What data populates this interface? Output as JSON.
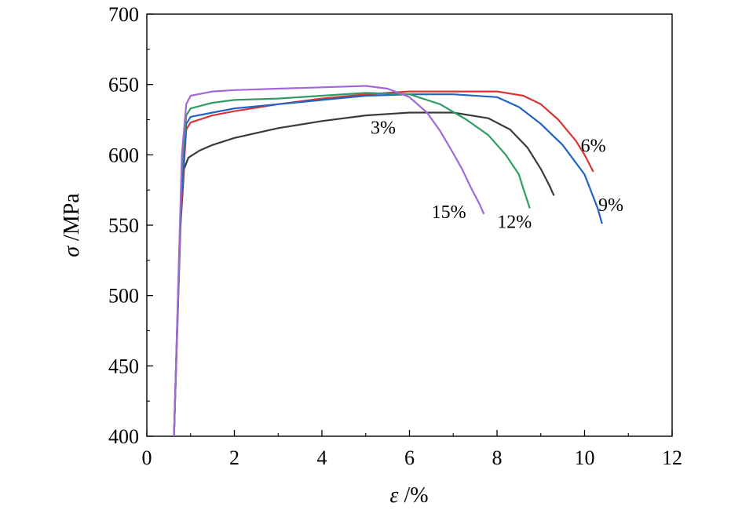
{
  "chart_data": {
    "type": "line",
    "title": "",
    "xlabel_symbol": "ε",
    "xlabel_unit": " /%",
    "ylabel_symbol": "σ",
    "ylabel_unit": " /MPa",
    "xlim": [
      0,
      12
    ],
    "ylim": [
      400,
      700
    ],
    "xticks": [
      "0",
      "2",
      "4",
      "6",
      "8",
      "10",
      "12"
    ],
    "yticks": [
      "400",
      "450",
      "500",
      "550",
      "600",
      "650",
      "700"
    ],
    "grid": false,
    "legend": "none",
    "series": [
      {
        "name": "3%",
        "color": "#3a3a3a",
        "points": [
          [
            0.62,
            400
          ],
          [
            0.75,
            540
          ],
          [
            0.85,
            590
          ],
          [
            0.95,
            598
          ],
          [
            1.2,
            603
          ],
          [
            1.5,
            607
          ],
          [
            2,
            612
          ],
          [
            3,
            619
          ],
          [
            4,
            624
          ],
          [
            5,
            628
          ],
          [
            6,
            630
          ],
          [
            7,
            630
          ],
          [
            7.8,
            626
          ],
          [
            8.3,
            618
          ],
          [
            8.7,
            605
          ],
          [
            9.0,
            590
          ],
          [
            9.2,
            578
          ],
          [
            9.3,
            571
          ]
        ]
      },
      {
        "name": "6%",
        "color": "#d93434",
        "points": [
          [
            0.62,
            400
          ],
          [
            0.78,
            560
          ],
          [
            0.9,
            618
          ],
          [
            1.0,
            623
          ],
          [
            1.5,
            628
          ],
          [
            2,
            631
          ],
          [
            3,
            636
          ],
          [
            4,
            640
          ],
          [
            5,
            643
          ],
          [
            6,
            645
          ],
          [
            7,
            645
          ],
          [
            8,
            645
          ],
          [
            8.6,
            642
          ],
          [
            9.0,
            636
          ],
          [
            9.4,
            625
          ],
          [
            9.8,
            610
          ],
          [
            10.0,
            600
          ],
          [
            10.2,
            588
          ]
        ]
      },
      {
        "name": "9%",
        "color": "#1f63c6",
        "points": [
          [
            0.62,
            400
          ],
          [
            0.78,
            565
          ],
          [
            0.9,
            622
          ],
          [
            1.0,
            627
          ],
          [
            1.5,
            630
          ],
          [
            2,
            633
          ],
          [
            3,
            636
          ],
          [
            4,
            639
          ],
          [
            5,
            642
          ],
          [
            6,
            643
          ],
          [
            7,
            643
          ],
          [
            8,
            641
          ],
          [
            8.5,
            634
          ],
          [
            9,
            622
          ],
          [
            9.5,
            607
          ],
          [
            10,
            586
          ],
          [
            10.3,
            562
          ],
          [
            10.4,
            551
          ]
        ]
      },
      {
        "name": "12%",
        "color": "#2e9c63",
        "points": [
          [
            0.62,
            400
          ],
          [
            0.8,
            590
          ],
          [
            0.9,
            628
          ],
          [
            1.0,
            633
          ],
          [
            1.5,
            637
          ],
          [
            2,
            639
          ],
          [
            3,
            640
          ],
          [
            4,
            642
          ],
          [
            5,
            644
          ],
          [
            6,
            643
          ],
          [
            6.7,
            636
          ],
          [
            7.3,
            625
          ],
          [
            7.8,
            614
          ],
          [
            8.2,
            600
          ],
          [
            8.5,
            586
          ],
          [
            8.6,
            576
          ],
          [
            8.75,
            562
          ]
        ]
      },
      {
        "name": "15%",
        "color": "#a466d8",
        "points": [
          [
            0.62,
            400
          ],
          [
            0.8,
            600
          ],
          [
            0.9,
            636
          ],
          [
            1.0,
            642
          ],
          [
            1.5,
            645
          ],
          [
            2,
            646
          ],
          [
            3,
            647
          ],
          [
            4,
            648
          ],
          [
            5,
            649
          ],
          [
            5.5,
            647
          ],
          [
            6,
            641
          ],
          [
            6.4,
            630
          ],
          [
            6.7,
            617
          ],
          [
            7.0,
            601
          ],
          [
            7.2,
            590
          ],
          [
            7.4,
            577
          ],
          [
            7.6,
            565
          ],
          [
            7.7,
            558
          ]
        ]
      }
    ],
    "annotations": [
      {
        "text": "3%",
        "x": 5.4,
        "y": 615
      },
      {
        "text": "6%",
        "x": 10.2,
        "y": 602
      },
      {
        "text": "9%",
        "x": 10.6,
        "y": 560
      },
      {
        "text": "12%",
        "x": 8.4,
        "y": 548
      },
      {
        "text": "15%",
        "x": 6.9,
        "y": 555
      }
    ]
  }
}
